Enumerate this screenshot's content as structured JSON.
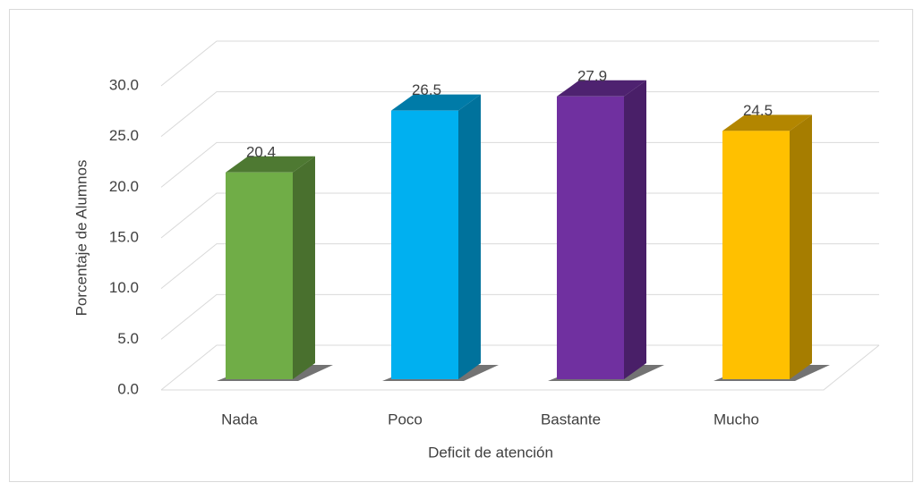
{
  "chart_data": {
    "type": "bar3d",
    "y_axis_label": "Porcentaje de Alumnos",
    "x_axis_label": "Deficit de atención",
    "categories": [
      "Nada",
      "Poco",
      "Bastante",
      "Mucho"
    ],
    "values": [
      20.4,
      26.5,
      27.9,
      24.5
    ],
    "colors": [
      "#70ad47",
      "#00b0f0",
      "#7030a0",
      "#ffc000"
    ],
    "ylim": [
      0,
      30
    ],
    "yticks": [
      {
        "value": 0,
        "label": "0.0"
      },
      {
        "value": 5,
        "label": "5.0"
      },
      {
        "value": 10,
        "label": "10.0"
      },
      {
        "value": 15,
        "label": "15.0"
      },
      {
        "value": 20,
        "label": "20.0"
      },
      {
        "value": 25,
        "label": "25.0"
      },
      {
        "value": 30,
        "label": "30.0"
      }
    ],
    "grid": true
  }
}
